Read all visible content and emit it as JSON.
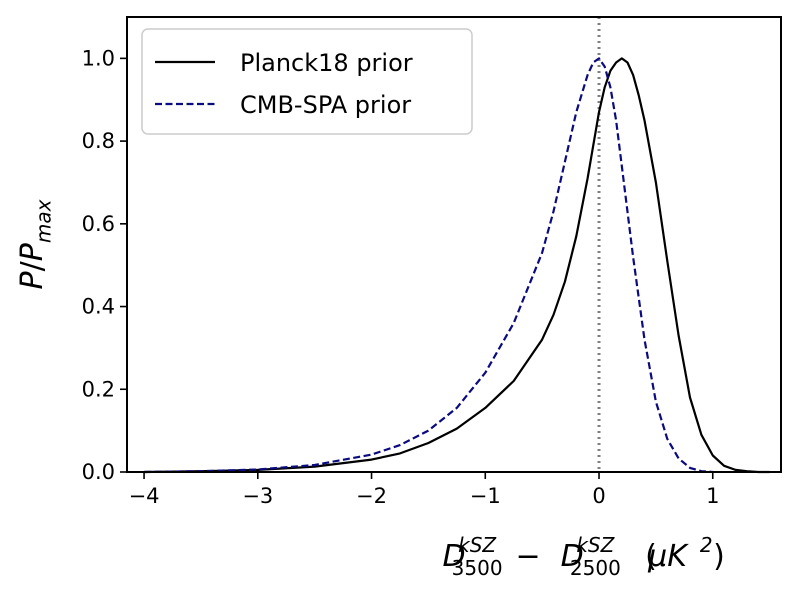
{
  "chart_data": {
    "type": "line",
    "xlabel": {
      "parts": [
        {
          "text": "D",
          "style": "italic"
        },
        {
          "text": "kSZ",
          "style": "sup"
        },
        {
          "text": "3500",
          "style": "sub"
        },
        {
          "text": " − ",
          "style": "normal"
        },
        {
          "text": "D",
          "style": "italic"
        },
        {
          "text": "kSZ",
          "style": "sup"
        },
        {
          "text": "2500",
          "style": "sub"
        },
        {
          "text": " (",
          "style": "normal"
        },
        {
          "text": "μK",
          "style": "italic"
        },
        {
          "text": "2",
          "style": "sup"
        },
        {
          "text": ")",
          "style": "normal"
        }
      ]
    },
    "ylabel": {
      "parts": [
        {
          "text": "P",
          "style": "italic"
        },
        {
          "text": "/",
          "style": "normal"
        },
        {
          "text": "P",
          "style": "italic"
        },
        {
          "text": "max",
          "style": "sub"
        }
      ]
    },
    "xlim": [
      -4.15,
      1.6
    ],
    "ylim": [
      0.0,
      1.1
    ],
    "xticks": [
      -4,
      -3,
      -2,
      -1,
      0,
      1
    ],
    "xtick_labels": [
      "−4",
      "−3",
      "−2",
      "−1",
      "0",
      "1"
    ],
    "yticks": [
      0.0,
      0.2,
      0.4,
      0.6,
      0.8,
      1.0
    ],
    "ytick_labels": [
      "0.0",
      "0.2",
      "0.4",
      "0.6",
      "0.8",
      "1.0"
    ],
    "grid": false,
    "legend_position": "upper-left",
    "vline": {
      "x": 0,
      "color": "#808080",
      "style": "dotted"
    },
    "series": [
      {
        "name": "Planck18 prior",
        "color": "#000000",
        "dash": "solid",
        "x": [
          -4.0,
          -3.5,
          -3.0,
          -2.5,
          -2.0,
          -1.75,
          -1.5,
          -1.25,
          -1.0,
          -0.75,
          -0.5,
          -0.4,
          -0.3,
          -0.2,
          -0.1,
          0.0,
          0.05,
          0.1,
          0.15,
          0.2,
          0.25,
          0.3,
          0.35,
          0.4,
          0.5,
          0.6,
          0.7,
          0.8,
          0.9,
          1.0,
          1.1,
          1.2,
          1.3,
          1.4,
          1.5
        ],
        "y": [
          0.0,
          0.002,
          0.005,
          0.013,
          0.03,
          0.045,
          0.07,
          0.105,
          0.155,
          0.22,
          0.32,
          0.38,
          0.46,
          0.57,
          0.71,
          0.87,
          0.93,
          0.97,
          0.99,
          1.0,
          0.99,
          0.96,
          0.91,
          0.85,
          0.7,
          0.51,
          0.33,
          0.18,
          0.09,
          0.04,
          0.015,
          0.005,
          0.002,
          0.0,
          0.0
        ]
      },
      {
        "name": "CMB-SPA prior",
        "color": "#0b0b80",
        "dash": "dashed",
        "x": [
          -4.0,
          -3.5,
          -3.0,
          -2.5,
          -2.0,
          -1.75,
          -1.5,
          -1.25,
          -1.0,
          -0.75,
          -0.5,
          -0.4,
          -0.3,
          -0.2,
          -0.1,
          -0.05,
          0.0,
          0.05,
          0.1,
          0.15,
          0.2,
          0.3,
          0.4,
          0.5,
          0.6,
          0.7,
          0.8,
          0.9,
          1.0
        ],
        "y": [
          0.0,
          0.002,
          0.006,
          0.017,
          0.042,
          0.065,
          0.1,
          0.155,
          0.24,
          0.36,
          0.53,
          0.63,
          0.75,
          0.87,
          0.96,
          0.99,
          1.0,
          0.98,
          0.93,
          0.85,
          0.74,
          0.52,
          0.32,
          0.17,
          0.08,
          0.033,
          0.01,
          0.002,
          0.0
        ]
      }
    ]
  }
}
